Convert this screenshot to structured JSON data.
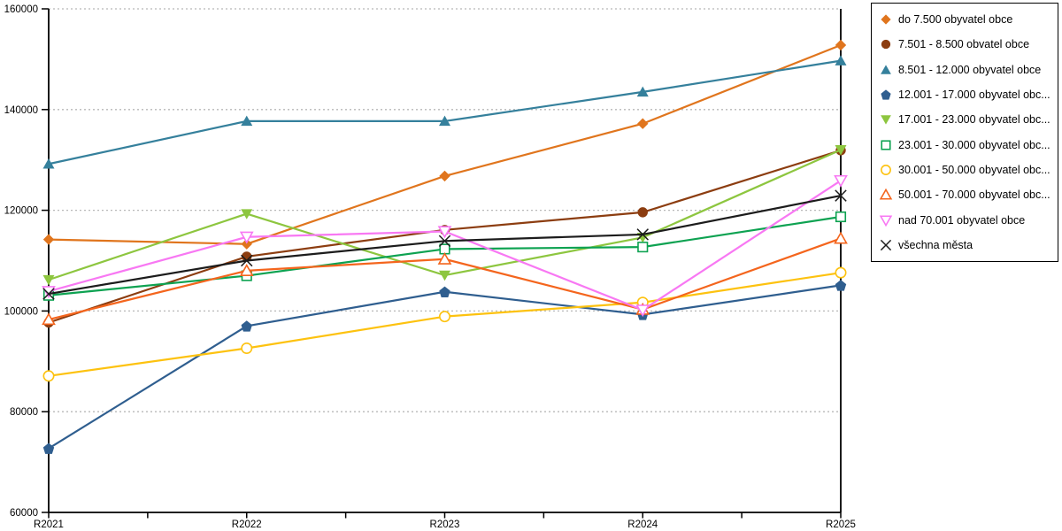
{
  "chart_data": {
    "type": "line",
    "title": "",
    "x_categories": [
      "R2021",
      "R2022",
      "R2023",
      "R2024",
      "R2025"
    ],
    "ylim": [
      60000,
      160000
    ],
    "y_ticks": [
      60000,
      80000,
      100000,
      120000,
      140000,
      160000
    ],
    "grid": "horizontal-dotted",
    "legend_position": "outside-top-right",
    "axis_color": "#000000",
    "gridline_color": "#b8b8b8",
    "series": [
      {
        "label": "do 7.500 obyvatel obce",
        "color": "#E0751D",
        "marker": "diamond",
        "fill": "solid",
        "values": [
          114200,
          113300,
          126800,
          137200,
          152800
        ]
      },
      {
        "label": "7.501 - 8.500 obvatel obce",
        "color": "#8C3D10",
        "marker": "circle",
        "fill": "solid",
        "values": [
          97700,
          110800,
          116100,
          119600,
          131900
        ]
      },
      {
        "label": "8.501 - 12.000 obyvatel obce",
        "color": "#35809C",
        "marker": "triangle-up",
        "fill": "solid",
        "values": [
          129200,
          137700,
          137700,
          143500,
          149700
        ]
      },
      {
        "label": "12.001 - 17.000 obyvatel obc...",
        "color": "#2F5E8F",
        "marker": "pentagon",
        "fill": "solid",
        "values": [
          72700,
          97000,
          103800,
          99300,
          105100
        ]
      },
      {
        "label": "17.001 - 23.000 obyvatel obc...",
        "color": "#8DC63F",
        "marker": "triangle-down",
        "fill": "solid",
        "values": [
          106200,
          119300,
          107100,
          114600,
          132000
        ]
      },
      {
        "label": "23.001 - 30.000 obyvatel obc...",
        "color": "#0DA251",
        "marker": "square",
        "fill": "open",
        "values": [
          103100,
          107000,
          112300,
          112700,
          118700
        ]
      },
      {
        "label": "30.001 - 50.000 obyvatel obc...",
        "color": "#FDC20F",
        "marker": "circle",
        "fill": "open",
        "values": [
          87100,
          92600,
          98900,
          101700,
          107600
        ]
      },
      {
        "label": "50.001 - 70.000 obyvatel obc...",
        "color": "#F4651D",
        "marker": "triangle-up",
        "fill": "open",
        "values": [
          98300,
          108000,
          110300,
          100300,
          114400
        ]
      },
      {
        "label": "nad 70.001 obyvatel obce",
        "color": "#F878F3",
        "marker": "triangle-down",
        "fill": "open",
        "values": [
          103900,
          114700,
          115800,
          100200,
          125900
        ]
      },
      {
        "label": "všechna města",
        "color": "#1C1C1C",
        "marker": "x",
        "fill": "open",
        "values": [
          103400,
          110000,
          113900,
          115200,
          122900
        ]
      }
    ]
  }
}
